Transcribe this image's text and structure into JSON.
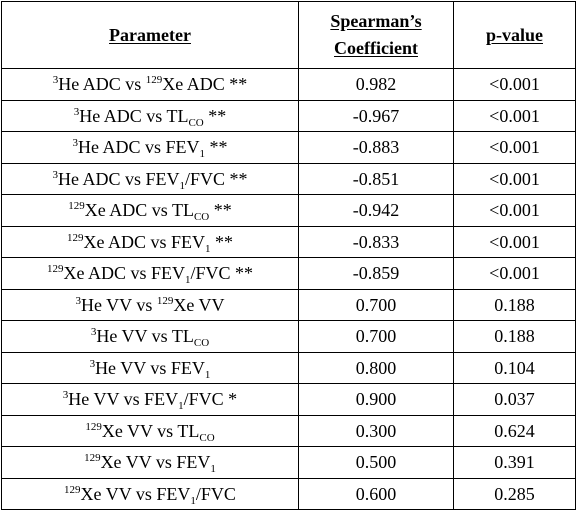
{
  "table": {
    "headers": [
      "Parameter",
      "Spearman’s",
      "Coefficient",
      "p-value"
    ],
    "rows": [
      {
        "param": [
          [
            "sup",
            "3"
          ],
          [
            "t",
            "He ADC vs "
          ],
          [
            "sup",
            "129"
          ],
          [
            "t",
            "Xe ADC **"
          ]
        ],
        "coef": "0.982",
        "p": "<0.001"
      },
      {
        "param": [
          [
            "sup",
            "3"
          ],
          [
            "t",
            "He ADC vs TL"
          ],
          [
            "sub",
            "CO"
          ],
          [
            "t",
            " **"
          ]
        ],
        "coef": "-0.967",
        "p": "<0.001"
      },
      {
        "param": [
          [
            "sup",
            "3"
          ],
          [
            "t",
            "He ADC vs FEV"
          ],
          [
            "sub",
            "1"
          ],
          [
            "t",
            " **"
          ]
        ],
        "coef": "-0.883",
        "p": "<0.001"
      },
      {
        "param": [
          [
            "sup",
            "3"
          ],
          [
            "t",
            "He ADC vs FEV"
          ],
          [
            "sub",
            "1"
          ],
          [
            "t",
            "/FVC **"
          ]
        ],
        "coef": "-0.851",
        "p": "<0.001"
      },
      {
        "param": [
          [
            "sup",
            "129"
          ],
          [
            "t",
            "Xe ADC vs TL"
          ],
          [
            "sub",
            "CO"
          ],
          [
            "t",
            " **"
          ]
        ],
        "coef": "-0.942",
        "p": "<0.001"
      },
      {
        "param": [
          [
            "sup",
            "129"
          ],
          [
            "t",
            "Xe ADC vs FEV"
          ],
          [
            "sub",
            "1"
          ],
          [
            "t",
            " **"
          ]
        ],
        "coef": "-0.833",
        "p": "<0.001"
      },
      {
        "param": [
          [
            "sup",
            "129"
          ],
          [
            "t",
            "Xe ADC vs FEV"
          ],
          [
            "sub",
            "1"
          ],
          [
            "t",
            "/FVC **"
          ]
        ],
        "coef": "-0.859",
        "p": "<0.001"
      },
      {
        "param": [
          [
            "sup",
            "3"
          ],
          [
            "t",
            "He VV vs "
          ],
          [
            "sup",
            "129"
          ],
          [
            "t",
            "Xe VV"
          ]
        ],
        "coef": "0.700",
        "p": "0.188"
      },
      {
        "param": [
          [
            "sup",
            "3"
          ],
          [
            "t",
            "He VV vs TL"
          ],
          [
            "sub",
            "CO"
          ]
        ],
        "coef": "0.700",
        "p": "0.188"
      },
      {
        "param": [
          [
            "sup",
            "3"
          ],
          [
            "t",
            "He VV vs FEV"
          ],
          [
            "sub",
            "1"
          ]
        ],
        "coef": "0.800",
        "p": "0.104"
      },
      {
        "param": [
          [
            "sup",
            "3"
          ],
          [
            "t",
            "He VV vs FEV"
          ],
          [
            "sub",
            "1"
          ],
          [
            "t",
            "/FVC *"
          ]
        ],
        "coef": "0.900",
        "p": "0.037"
      },
      {
        "param": [
          [
            "sup",
            "129"
          ],
          [
            "t",
            "Xe VV vs TL"
          ],
          [
            "sub",
            "CO"
          ]
        ],
        "coef": "0.300",
        "p": "0.624"
      },
      {
        "param": [
          [
            "sup",
            "129"
          ],
          [
            "t",
            "Xe VV vs FEV"
          ],
          [
            "sub",
            "1"
          ]
        ],
        "coef": "0.500",
        "p": "0.391"
      },
      {
        "param": [
          [
            "sup",
            "129"
          ],
          [
            "t",
            "Xe VV vs FEV"
          ],
          [
            "sub",
            "1"
          ],
          [
            "t",
            "/FVC"
          ]
        ],
        "coef": "0.600",
        "p": "0.285"
      }
    ]
  }
}
